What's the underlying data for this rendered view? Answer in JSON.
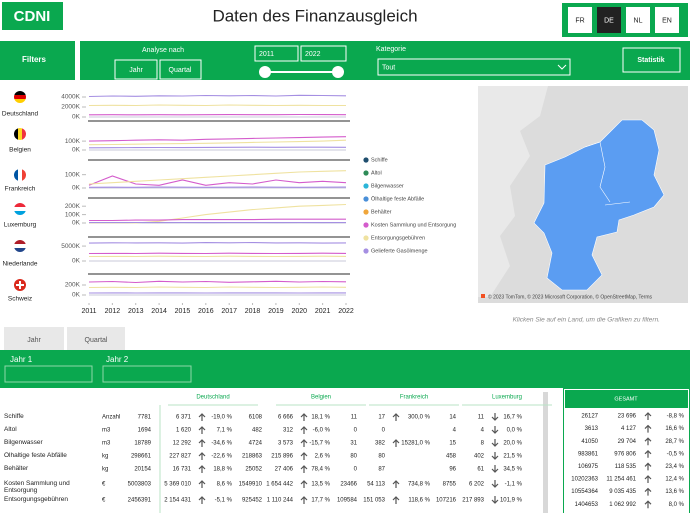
{
  "header": {
    "logo": "CDNI",
    "title": "Daten des Finanzausgleich",
    "languages": [
      "FR",
      "DE",
      "NL",
      "EN"
    ]
  },
  "toolbar": {
    "filters": "Filters",
    "analyse_label": "Analyse nach",
    "analyse_options": [
      "Jahr",
      "Quartal"
    ],
    "year_from": "2011",
    "year_to": "2022",
    "category_label": "Kategorie",
    "category_value": "Tout",
    "statistik": "Statistik"
  },
  "legend": [
    {
      "name": "Schiffe",
      "color": "#1f4e6e"
    },
    {
      "name": "Altol",
      "color": "#2e8b57"
    },
    {
      "name": "Bilgenwasser",
      "color": "#2bb5d8"
    },
    {
      "name": "Ölhaltige feste Abfälle",
      "color": "#4a8fd8"
    },
    {
      "name": "Behälter",
      "color": "#f0a63a"
    },
    {
      "name": "Kosten Sammlung und Entsorgung",
      "color": "#d45ccc"
    },
    {
      "name": "Entsorgungsgebühren",
      "color": "#efe2a0"
    },
    {
      "name": "Gelieferte Gasölmenge",
      "color": "#a58fe2"
    }
  ],
  "chart_data": [
    {
      "type": "line",
      "title": "Deutschland",
      "x": [
        2011,
        2012,
        2013,
        2014,
        2015,
        2016,
        2017,
        2018,
        2019,
        2020,
        2021,
        2022
      ],
      "xlim": [
        2011,
        2022
      ],
      "ylim": [
        0,
        4800000
      ],
      "yticks": [
        {
          "value": 4000000,
          "label": "4000K"
        },
        {
          "value": 2000000,
          "label": "2000K"
        },
        {
          "value": 0,
          "label": "0K"
        }
      ],
      "series": [
        {
          "name": "Gelieferte Gasölmenge",
          "color": "#a58fe2",
          "values": [
            4100000,
            4200000,
            4150000,
            4250000,
            4200000,
            4300000,
            4250000,
            4300000,
            4200000,
            4350000,
            4300000,
            4250000
          ]
        },
        {
          "name": "Entsorgungsgebühren",
          "color": "#efe2a0",
          "values": [
            2300000,
            2350000,
            2300000,
            2400000,
            2350000,
            2300000,
            2400000,
            2350000,
            2300000,
            2350000,
            2300000,
            2300000
          ]
        },
        {
          "name": "Kosten Sammlung und Entsorgung",
          "color": "#d45ccc",
          "values": [
            450000,
            460000,
            440000,
            470000,
            450000,
            460000,
            480000,
            470000,
            460000,
            490000,
            480000,
            470000
          ]
        }
      ]
    },
    {
      "type": "line",
      "title": "Belgien",
      "x": [
        2011,
        2012,
        2013,
        2014,
        2015,
        2016,
        2017,
        2018,
        2019,
        2020,
        2021,
        2022
      ],
      "xlim": [
        2011,
        2022
      ],
      "ylim": [
        0,
        180000
      ],
      "yticks": [
        {
          "value": 100000,
          "label": "100K"
        },
        {
          "value": 0,
          "label": "0K"
        }
      ],
      "series": [
        {
          "name": "Kosten Sammlung und Entsorgung",
          "color": "#d45ccc",
          "values": [
            100000,
            105000,
            110000,
            115000,
            110000,
            120000,
            125000,
            130000,
            135000,
            140000,
            145000,
            150000
          ]
        },
        {
          "name": "Entsorgungsgebühren",
          "color": "#efe2a0",
          "values": [
            60000,
            62000,
            65000,
            70000,
            72000,
            75000,
            80000,
            85000,
            90000,
            95000,
            100000,
            110000
          ]
        },
        {
          "name": "Gelieferte Gasölmenge",
          "color": "#a58fe2",
          "values": [
            25000,
            26000,
            27000,
            28000,
            27000,
            29000,
            30000,
            31000,
            30000,
            32000,
            31000,
            30000
          ]
        }
      ]
    },
    {
      "type": "line",
      "title": "Frankreich",
      "x": [
        2011,
        2012,
        2013,
        2014,
        2015,
        2016,
        2017,
        2018,
        2019,
        2020,
        2021,
        2022
      ],
      "xlim": [
        2011,
        2022
      ],
      "ylim": [
        0,
        150000
      ],
      "yticks": [
        {
          "value": 100000,
          "label": "100K"
        },
        {
          "value": 0,
          "label": "0K"
        }
      ],
      "series": [
        {
          "name": "Kosten Sammlung und Entsorgung",
          "color": "#d45ccc",
          "values": [
            20000,
            90000,
            30000,
            20000,
            60000,
            20000,
            40000,
            30000,
            60000,
            40000,
            50000,
            40000
          ]
        },
        {
          "name": "Entsorgungsgebühren",
          "color": "#efe2a0",
          "values": [
            30000,
            40000,
            50000,
            60000,
            70000,
            80000,
            90000,
            100000,
            110000,
            120000,
            125000,
            130000
          ]
        },
        {
          "name": "Gelieferte Gasölmenge",
          "color": "#a58fe2",
          "values": [
            5000,
            6000,
            5000,
            7000,
            6000,
            5000,
            6000,
            7000,
            6000,
            5000,
            6000,
            7000
          ]
        }
      ]
    },
    {
      "type": "line",
      "title": "Luxemburg",
      "x": [
        2011,
        2012,
        2013,
        2014,
        2015,
        2016,
        2017,
        2018,
        2019,
        2020,
        2021,
        2022
      ],
      "xlim": [
        2011,
        2022
      ],
      "ylim": [
        0,
        250000
      ],
      "yticks": [
        {
          "value": 200000,
          "label": "200K"
        },
        {
          "value": 100000,
          "label": "100K"
        },
        {
          "value": 0,
          "label": "0K"
        }
      ],
      "series": [
        {
          "name": "Entsorgungsgebühren",
          "color": "#efe2a0",
          "values": [
            0,
            0,
            0,
            20000,
            60000,
            100000,
            130000,
            160000,
            180000,
            200000,
            210000,
            220000
          ]
        },
        {
          "name": "Kosten Sammlung und Entsorgung",
          "color": "#d45ccc",
          "values": [
            30000,
            30000,
            35000,
            35000,
            40000,
            40000,
            40000,
            40000,
            45000,
            45000,
            45000,
            45000
          ]
        },
        {
          "name": "Gelieferte Gasölmenge",
          "color": "#a58fe2",
          "values": [
            5000,
            5000,
            6000,
            5000,
            6000,
            5000,
            6000,
            6000,
            5000,
            6000,
            5000,
            6000
          ]
        }
      ]
    },
    {
      "type": "line",
      "title": "Niederlande",
      "x": [
        2011,
        2012,
        2013,
        2014,
        2015,
        2016,
        2017,
        2018,
        2019,
        2020,
        2021,
        2022
      ],
      "xlim": [
        2011,
        2022
      ],
      "ylim": [
        0,
        6700000
      ],
      "yticks": [
        {
          "value": 5000000,
          "label": "5000K"
        },
        {
          "value": 0,
          "label": "0K"
        }
      ],
      "series": [
        {
          "name": "Gelieferte Gasölmenge",
          "color": "#a58fe2",
          "values": [
            6000000,
            6100000,
            6050000,
            6100000,
            6000000,
            6150000,
            6100000,
            6200000,
            6050000,
            6100000,
            6000000,
            6050000
          ]
        },
        {
          "name": "Kosten Sammlung und Entsorgung",
          "color": "#d45ccc",
          "values": [
            2500000,
            2550000,
            2500000,
            2600000,
            2550000,
            2500000,
            2600000,
            2550000,
            2500000,
            2550000,
            2600000,
            2550000
          ]
        },
        {
          "name": "Entsorgungsgebühren",
          "color": "#efe2a0",
          "values": [
            1500000,
            1550000,
            1500000,
            1600000,
            1550000,
            1500000,
            1600000,
            1550000,
            1500000,
            1550000,
            1600000,
            1550000
          ]
        }
      ]
    },
    {
      "type": "line",
      "title": "Schweiz",
      "x": [
        2011,
        2012,
        2013,
        2014,
        2015,
        2016,
        2017,
        2018,
        2019,
        2020,
        2021,
        2022
      ],
      "xlim": [
        2011,
        2022
      ],
      "xticks": [
        2011,
        2012,
        2013,
        2014,
        2015,
        2016,
        2017,
        2018,
        2019,
        2020,
        2021,
        2022
      ],
      "ylim": [
        0,
        300000
      ],
      "yticks": [
        {
          "value": 200000,
          "label": "200K"
        },
        {
          "value": 0,
          "label": "0K"
        }
      ],
      "series": [
        {
          "name": "Kosten Sammlung und Entsorgung",
          "color": "#d45ccc",
          "values": [
            260000,
            270000,
            250000,
            275000,
            260000,
            270000,
            255000,
            265000,
            275000,
            260000,
            270000,
            265000
          ]
        },
        {
          "name": "Entsorgungsgebühren",
          "color": "#efe2a0",
          "values": [
            150000,
            155000,
            150000,
            160000,
            155000,
            150000,
            160000,
            155000,
            150000,
            155000,
            160000,
            155000
          ]
        },
        {
          "name": "Gelieferte Gasölmenge",
          "color": "#a58fe2",
          "values": [
            40000,
            42000,
            40000,
            43000,
            41000,
            40000,
            42000,
            43000,
            41000,
            40000,
            42000,
            41000
          ]
        }
      ]
    }
  ],
  "map": {
    "attribution": "© 2023 TomTom, © 2023 Microsoft Corporation, © OpenStreetMap, Terms",
    "caption": "Klicken Sie auf ein Land, um die Grafiken zu filtern."
  },
  "tabs": [
    "Jahr",
    "Quartal"
  ],
  "year_filters": [
    "Jahr 1",
    "Jahr 2"
  ],
  "table": {
    "columns": [
      "Deutschland",
      "Belgien",
      "Frankreich",
      "Luxemburg"
    ],
    "rows": [
      {
        "label": "Schiffe",
        "unit": "Anzahl",
        "cells": [
          [
            "7781",
            "6 371",
            "-19,0 %"
          ],
          [
            "6108",
            "6 666",
            "18,1 %"
          ],
          [
            "11",
            "17",
            "300,0 %"
          ],
          [
            "14",
            "11",
            "16,7 %"
          ]
        ]
      },
      {
        "label": "Altol",
        "unit": "m3",
        "cells": [
          [
            "1694",
            "1 620",
            "7,1 %"
          ],
          [
            "482",
            "312",
            "-6,0 %"
          ],
          [
            "0",
            "0",
            null
          ],
          [
            "4",
            "4",
            "0,0 %"
          ]
        ]
      },
      {
        "label": "Bilgenwasser",
        "unit": "m3",
        "cells": [
          [
            "18789",
            "12 292",
            "-34,6 %"
          ],
          [
            "4724",
            "3 573",
            "-15,7 %"
          ],
          [
            "31",
            "382",
            "15281,0 %"
          ],
          [
            "15",
            "8",
            "20,0 %"
          ]
        ]
      },
      {
        "label": "Ölhaltige feste Abfälle",
        "unit": "kg",
        "cells": [
          [
            "298661",
            "227 827",
            "-22,6 %"
          ],
          [
            "218863",
            "215 896",
            "2,6 %"
          ],
          [
            "80",
            "80",
            null
          ],
          [
            "458",
            "402",
            "21,5 %"
          ]
        ]
      },
      {
        "label": "Behälter",
        "unit": "kg",
        "cells": [
          [
            "20154",
            "16 731",
            "18,8 %"
          ],
          [
            "25052",
            "27 406",
            "78,4 %"
          ],
          [
            "0",
            "87",
            null
          ],
          [
            "96",
            "61",
            "34,5 %"
          ]
        ]
      },
      {
        "label": "Kosten Sammlung und Entsorgung",
        "unit": "€",
        "cells": [
          [
            "5003803",
            "5 369 010",
            "8,6 %"
          ],
          [
            "1549910",
            "1 654 442",
            "13,5 %"
          ],
          [
            "23466",
            "54 113",
            "734,8 %"
          ],
          [
            "8755",
            "6 202",
            "-1,1 %"
          ]
        ]
      },
      {
        "label": "Entsorgungsgebühren",
        "unit": "€",
        "cells": [
          [
            "2456391",
            "2 154 431",
            "-5,1 %"
          ],
          [
            "925452",
            "1 110 244",
            "17,7 %"
          ],
          [
            "109584",
            "151 053",
            "118,6 %"
          ],
          [
            "107216",
            "217 893",
            "101,9 %"
          ]
        ]
      }
    ]
  },
  "total": {
    "title": "GESAMT",
    "rows": [
      [
        "26127",
        "23 696",
        "-8,8 %"
      ],
      [
        "3613",
        "4 127",
        "16,6 %"
      ],
      [
        "41050",
        "29 704",
        "28,7 %"
      ],
      [
        "983861",
        "976 806",
        "-0,5 %"
      ],
      [
        "106975",
        "118 535",
        "23,4 %"
      ],
      [
        "10202363",
        "11 254 461",
        "12,4 %"
      ],
      [
        "10554364",
        "9 035 435",
        "13,6 %"
      ],
      [
        "1404653",
        "1 062 992",
        "8,0 %"
      ]
    ]
  }
}
